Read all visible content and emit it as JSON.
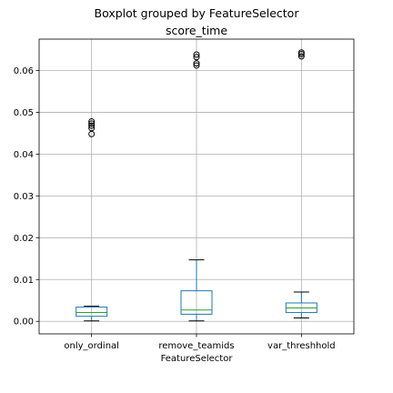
{
  "chart_data": {
    "type": "boxplot",
    "suptitle": "Boxplot grouped by FeatureSelector",
    "title": "score_time",
    "xlabel": "FeatureSelector",
    "ylabel": "",
    "ylim": [
      -0.003,
      0.0675
    ],
    "yticks": [
      0.0,
      0.01,
      0.02,
      0.03,
      0.04,
      0.05,
      0.06
    ],
    "ytick_labels": [
      "0.00",
      "0.01",
      "0.02",
      "0.03",
      "0.04",
      "0.05",
      "0.06"
    ],
    "grid": true,
    "colors": {
      "box": "#1f77b4",
      "median": "#2ca02c",
      "whisker": "#1f77b4",
      "cap": "#000000",
      "flier": "#000000",
      "grid": "#b0b0b0"
    },
    "categories": [
      "only_ordinal",
      "remove_teamids",
      "var_threshhold"
    ],
    "boxes": [
      {
        "category": "only_ordinal",
        "whislo": 0.0001,
        "q1": 0.0012,
        "med": 0.0021,
        "q3": 0.0034,
        "whishi": 0.0036,
        "fliers": [
          0.0448,
          0.0462,
          0.0468,
          0.0473,
          0.0478
        ]
      },
      {
        "category": "remove_teamids",
        "whislo": 0.0001,
        "q1": 0.0017,
        "med": 0.0027,
        "q3": 0.0073,
        "whishi": 0.0147,
        "fliers": [
          0.0612,
          0.0617,
          0.0632,
          0.0638
        ]
      },
      {
        "category": "var_threshhold",
        "whislo": 0.0008,
        "q1": 0.0021,
        "med": 0.0032,
        "q3": 0.0044,
        "whishi": 0.007,
        "fliers": [
          0.0634,
          0.0639,
          0.0643
        ]
      }
    ]
  }
}
